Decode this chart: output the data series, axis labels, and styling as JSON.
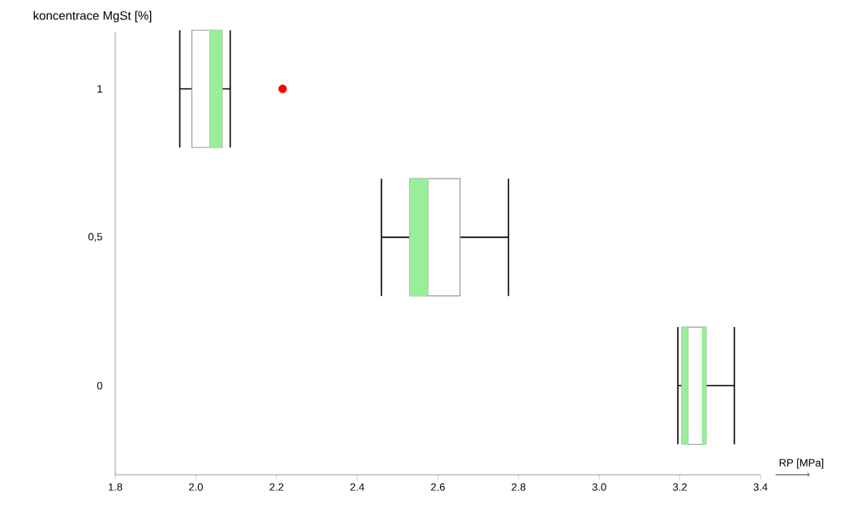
{
  "chart_data": {
    "type": "box",
    "orientation": "horizontal",
    "xlabel": "RP [MPa]",
    "ylabel": "koncentrace MgSt [%]",
    "categories": [
      "1",
      "0,5",
      "0"
    ],
    "xlim": [
      1.8,
      3.4
    ],
    "xticks": [
      1.8,
      {
        "value": 2,
        "label": "2.0"
      },
      2.2,
      2.4,
      2.6,
      2.8,
      {
        "value": 3,
        "label": "3.0"
      },
      3.2,
      3.4
    ],
    "boxes": [
      {
        "low": 1.96,
        "q1": 1.99,
        "median": 2.035,
        "q3": 2.065,
        "high": 2.085,
        "outliers": [
          2.215
        ]
      },
      {
        "low": 2.46,
        "q1": 2.53,
        "median": 2.575,
        "q3": 2.655,
        "high": 2.775
      },
      {
        "low": 3.195,
        "q1": 3.205,
        "median": 3.22,
        "q3": 3.265,
        "high": 3.335
      }
    ],
    "series": [
      {
        "type": "bar",
        "color": "#99ee99",
        "base": [
          2.035,
          2.53,
          3.205
        ],
        "values": [
          0.03,
          0.045,
          0.015
        ]
      },
      {
        "type": "bar",
        "color": "#99ee99",
        "base": [
          null,
          null,
          3.255
        ],
        "values": [
          null,
          null,
          0.01
        ]
      }
    ],
    "grid": false
  }
}
